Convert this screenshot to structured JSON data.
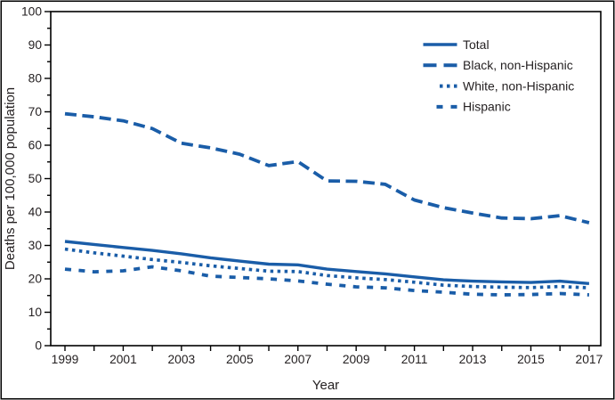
{
  "chart_data": {
    "type": "line",
    "title": "",
    "xlabel": "Year",
    "ylabel": "Deaths per 100,000 population",
    "x": [
      1999,
      2000,
      2001,
      2002,
      2003,
      2004,
      2005,
      2006,
      2007,
      2008,
      2009,
      2010,
      2011,
      2012,
      2013,
      2014,
      2015,
      2016,
      2017
    ],
    "series": [
      {
        "name": "Total",
        "style": "solid",
        "values": [
          31.2,
          30.3,
          29.4,
          28.5,
          27.5,
          26.3,
          25.3,
          24.4,
          24.2,
          22.9,
          22.2,
          21.5,
          20.6,
          19.7,
          19.3,
          19.1,
          18.9,
          19.3,
          18.6
        ]
      },
      {
        "name": "Black, non-Hispanic",
        "style": "long-dash",
        "values": [
          69.4,
          68.5,
          67.3,
          65.0,
          60.6,
          59.2,
          57.3,
          53.9,
          55.1,
          49.3,
          49.2,
          48.3,
          43.6,
          41.3,
          39.7,
          38.2,
          38.0,
          38.9,
          36.8
        ]
      },
      {
        "name": "White, non-Hispanic",
        "style": "dotted",
        "values": [
          28.9,
          27.8,
          26.8,
          25.8,
          24.9,
          23.9,
          23.1,
          22.3,
          22.2,
          21.0,
          20.3,
          19.8,
          19.0,
          18.1,
          17.7,
          17.5,
          17.4,
          17.7,
          17.3
        ]
      },
      {
        "name": "Hispanic",
        "style": "short-dash",
        "values": [
          22.9,
          22.1,
          22.4,
          23.6,
          22.4,
          20.8,
          20.4,
          20.0,
          19.4,
          18.4,
          17.6,
          17.3,
          16.5,
          16.0,
          15.4,
          15.2,
          15.3,
          15.6,
          15.2
        ]
      }
    ],
    "ylim": [
      0,
      100
    ],
    "y_major_ticks": [
      0,
      10,
      20,
      30,
      40,
      50,
      60,
      70,
      80,
      90,
      100
    ],
    "y_minor_step": 5,
    "x_tick_every_year": 1,
    "x_label_years": [
      1999,
      2001,
      2003,
      2005,
      2007,
      2009,
      2011,
      2013,
      2015,
      2017
    ],
    "legend_position": "top-right",
    "grid": false,
    "colors": {
      "line": "#1A5DA8",
      "axis": "#000000",
      "text": "#231F20",
      "background": "#FFFFFF"
    }
  }
}
